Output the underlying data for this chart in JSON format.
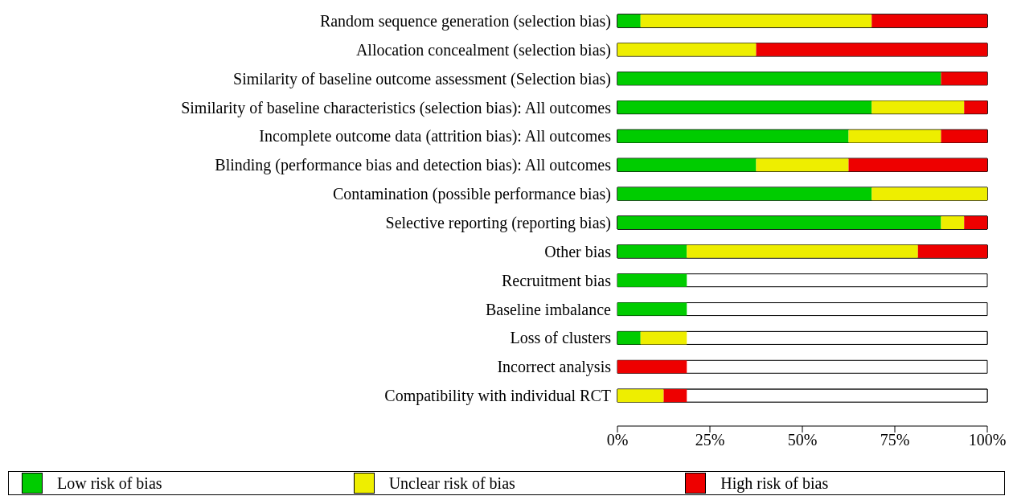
{
  "chart_data": {
    "type": "bar",
    "orientation": "horizontal",
    "stacked": true,
    "categories": [
      "Random sequence generation (selection bias)",
      "Allocation concealment (selection bias)",
      "Similarity of baseline outcome assessment (Selection bias)",
      "Similarity of baseline characteristics (selection bias): All outcomes",
      "Incomplete outcome data (attrition bias): All outcomes",
      "Blinding (performance bias and detection bias): All outcomes",
      "Contamination (possible performance bias)",
      "Selective reporting (reporting bias)",
      "Other bias",
      "Recruitment bias",
      "Baseline imbalance",
      "Loss of clusters",
      "Incorrect analysis",
      "Compatibility with individual RCT"
    ],
    "series": [
      {
        "name": "Low risk of bias",
        "color": "#00cc00",
        "values": [
          6.25,
          0,
          87.5,
          68.75,
          62.5,
          37.5,
          68.75,
          87.5,
          18.75,
          18.75,
          18.75,
          6.25,
          0,
          0
        ]
      },
      {
        "name": "Unclear risk of bias",
        "color": "#eeee00",
        "values": [
          62.5,
          37.5,
          0,
          25,
          25,
          25,
          31.25,
          6.25,
          62.5,
          0,
          0,
          12.5,
          0,
          12.5
        ]
      },
      {
        "name": "High risk of bias",
        "color": "#ee0000",
        "values": [
          31.25,
          62.5,
          12.5,
          6.25,
          12.5,
          37.5,
          0,
          6.25,
          18.75,
          0,
          0,
          0,
          18.75,
          6.25
        ]
      }
    ],
    "xlim": [
      0,
      100
    ],
    "xticks": [
      {
        "value": 0,
        "label": "0%"
      },
      {
        "value": 25,
        "label": "25%"
      },
      {
        "value": 50,
        "label": "50%"
      },
      {
        "value": 75,
        "label": "75%"
      },
      {
        "value": 100,
        "label": "100%"
      }
    ],
    "legend": "bottom"
  }
}
